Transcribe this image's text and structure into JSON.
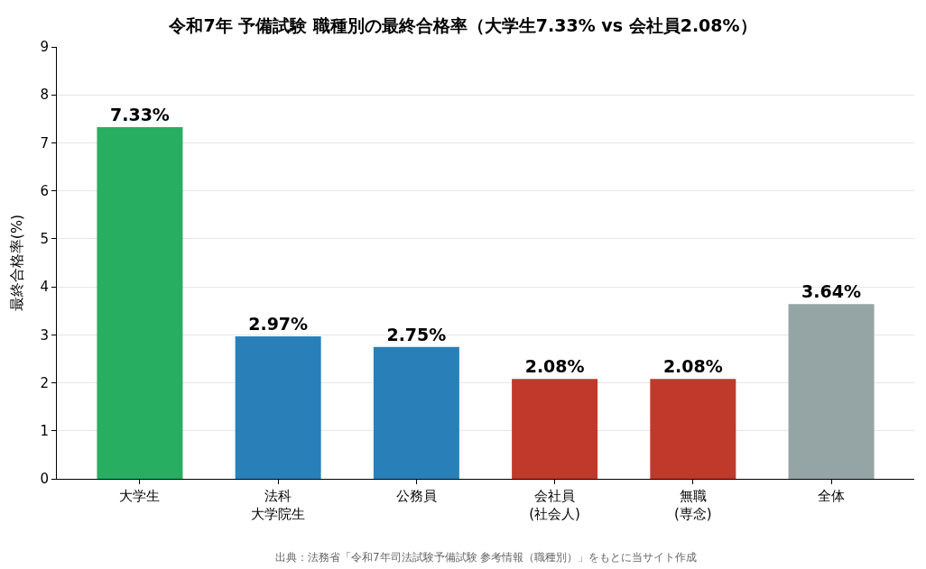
{
  "chart_data": {
    "type": "bar",
    "title": "令和7年 予備試験 職種別の最終合格率（大学生7.33% vs 会社員2.08%）",
    "ylabel": "最終合格率(%)",
    "categories": [
      "大学生",
      "法科大学院生",
      "公務員",
      "会社員(社会人)",
      "無職(専念)",
      "全体"
    ],
    "values": [
      7.33,
      2.97,
      2.75,
      2.08,
      2.08,
      3.64
    ],
    "colors": [
      "#27ae60",
      "#2980b9",
      "#2980b9",
      "#c0392b",
      "#c0392b",
      "#95a5a6"
    ],
    "value_labels": [
      "7.33%",
      "2.97%",
      "2.75%",
      "2.08%",
      "2.08%",
      "3.64%"
    ],
    "ylim": [
      0,
      9
    ],
    "yticks": [
      0,
      1,
      2,
      3,
      4,
      5,
      6,
      7,
      8,
      9
    ],
    "grid": "y",
    "annotations": [
      "出典：法務省「令和7年司法試験予備試験 参考情報（職種別）」をもとに当サイト作成"
    ]
  }
}
